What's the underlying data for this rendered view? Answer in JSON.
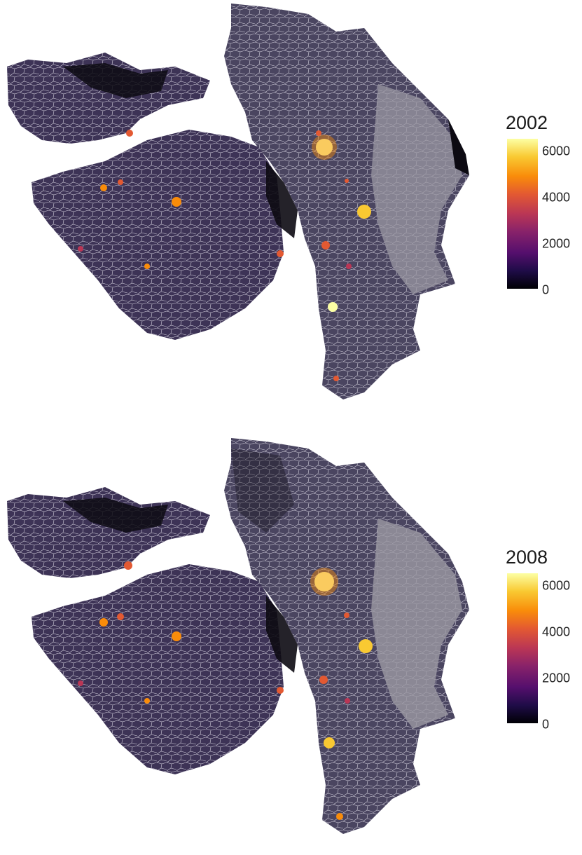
{
  "panels": [
    {
      "legend_title": "2002",
      "legend_ticks": [
        {
          "label": "6000",
          "value": 6000
        },
        {
          "label": "4000",
          "value": 4000
        },
        {
          "label": "2000",
          "value": 2000
        },
        {
          "label": "0",
          "value": 0
        }
      ]
    },
    {
      "legend_title": "2008",
      "legend_ticks": [
        {
          "label": "6000",
          "value": 6000
        },
        {
          "label": "4000",
          "value": 4000
        },
        {
          "label": "2000",
          "value": 2000
        },
        {
          "label": "0",
          "value": 0
        }
      ]
    }
  ],
  "scale_max": 6500,
  "colors": {
    "base_fill": "#3d3356",
    "boundary": "#d6d3df",
    "grey_region": "#9b98a3",
    "dark_region": "#0c0a12",
    "hotspot_low": "#ba3655",
    "hotspot_mid": "#f98c0a",
    "hotspot_high": "#fcffa4"
  }
}
